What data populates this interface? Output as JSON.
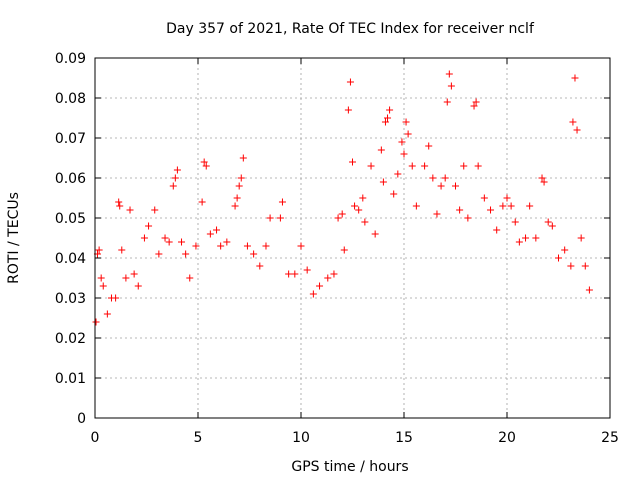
{
  "chart_data": {
    "type": "scatter",
    "title": "Day 357 of 2021, Rate Of TEC Index for receiver nclf",
    "xlabel": "GPS time / hours",
    "ylabel": "ROTI / TECUs",
    "xlim": [
      0,
      25
    ],
    "ylim": [
      0,
      0.09
    ],
    "grid": true,
    "marker": "+",
    "colors": {
      "marker": "#ff0000",
      "grid": "#a0a0a0",
      "axis": "#000000"
    },
    "x_ticks": [
      "0",
      "5",
      "10",
      "15",
      "20",
      "25"
    ],
    "y_ticks": [
      "0",
      "0.01",
      "0.02",
      "0.03",
      "0.04",
      "0.05",
      "0.06",
      "0.07",
      "0.08",
      "0.09"
    ],
    "series": [
      {
        "marker": "+",
        "points": [
          [
            0.05,
            0.024
          ],
          [
            0.12,
            0.041
          ],
          [
            0.2,
            0.042
          ],
          [
            0.3,
            0.035
          ],
          [
            0.4,
            0.033
          ],
          [
            0.6,
            0.026
          ],
          [
            0.8,
            0.03
          ],
          [
            1.0,
            0.03
          ],
          [
            1.15,
            0.054
          ],
          [
            1.2,
            0.053
          ],
          [
            1.3,
            0.042
          ],
          [
            1.5,
            0.035
          ],
          [
            1.7,
            0.052
          ],
          [
            1.9,
            0.036
          ],
          [
            2.1,
            0.033
          ],
          [
            2.4,
            0.045
          ],
          [
            2.6,
            0.048
          ],
          [
            2.9,
            0.052
          ],
          [
            3.1,
            0.041
          ],
          [
            3.4,
            0.045
          ],
          [
            3.6,
            0.044
          ],
          [
            3.8,
            0.058
          ],
          [
            3.9,
            0.06
          ],
          [
            4.0,
            0.062
          ],
          [
            4.2,
            0.044
          ],
          [
            4.4,
            0.041
          ],
          [
            4.6,
            0.035
          ],
          [
            4.9,
            0.043
          ],
          [
            5.2,
            0.054
          ],
          [
            5.3,
            0.064
          ],
          [
            5.4,
            0.063
          ],
          [
            5.6,
            0.046
          ],
          [
            5.9,
            0.047
          ],
          [
            6.1,
            0.043
          ],
          [
            6.4,
            0.044
          ],
          [
            6.8,
            0.053
          ],
          [
            6.9,
            0.055
          ],
          [
            7.0,
            0.058
          ],
          [
            7.1,
            0.06
          ],
          [
            7.2,
            0.065
          ],
          [
            7.4,
            0.043
          ],
          [
            7.7,
            0.041
          ],
          [
            8.0,
            0.038
          ],
          [
            8.3,
            0.043
          ],
          [
            8.5,
            0.05
          ],
          [
            9.0,
            0.05
          ],
          [
            9.1,
            0.054
          ],
          [
            9.4,
            0.036
          ],
          [
            9.7,
            0.036
          ],
          [
            10.0,
            0.043
          ],
          [
            10.3,
            0.037
          ],
          [
            10.6,
            0.031
          ],
          [
            10.9,
            0.033
          ],
          [
            11.3,
            0.035
          ],
          [
            11.6,
            0.036
          ],
          [
            11.8,
            0.05
          ],
          [
            12.0,
            0.051
          ],
          [
            12.1,
            0.042
          ],
          [
            12.3,
            0.077
          ],
          [
            12.4,
            0.084
          ],
          [
            12.5,
            0.064
          ],
          [
            12.6,
            0.053
          ],
          [
            12.8,
            0.052
          ],
          [
            13.0,
            0.055
          ],
          [
            13.1,
            0.049
          ],
          [
            13.4,
            0.063
          ],
          [
            13.6,
            0.046
          ],
          [
            13.9,
            0.067
          ],
          [
            14.0,
            0.059
          ],
          [
            14.1,
            0.074
          ],
          [
            14.2,
            0.075
          ],
          [
            14.3,
            0.077
          ],
          [
            14.5,
            0.056
          ],
          [
            14.7,
            0.061
          ],
          [
            14.9,
            0.069
          ],
          [
            15.0,
            0.066
          ],
          [
            15.1,
            0.074
          ],
          [
            15.2,
            0.071
          ],
          [
            15.4,
            0.063
          ],
          [
            15.6,
            0.053
          ],
          [
            16.0,
            0.063
          ],
          [
            16.2,
            0.068
          ],
          [
            16.4,
            0.06
          ],
          [
            16.6,
            0.051
          ],
          [
            16.8,
            0.058
          ],
          [
            17.0,
            0.06
          ],
          [
            17.1,
            0.079
          ],
          [
            17.2,
            0.086
          ],
          [
            17.3,
            0.083
          ],
          [
            17.5,
            0.058
          ],
          [
            17.7,
            0.052
          ],
          [
            17.9,
            0.063
          ],
          [
            18.1,
            0.05
          ],
          [
            18.4,
            0.078
          ],
          [
            18.5,
            0.079
          ],
          [
            18.6,
            0.063
          ],
          [
            18.9,
            0.055
          ],
          [
            19.2,
            0.052
          ],
          [
            19.5,
            0.047
          ],
          [
            19.8,
            0.053
          ],
          [
            20.0,
            0.055
          ],
          [
            20.2,
            0.053
          ],
          [
            20.4,
            0.049
          ],
          [
            20.6,
            0.044
          ],
          [
            20.9,
            0.045
          ],
          [
            21.1,
            0.053
          ],
          [
            21.4,
            0.045
          ],
          [
            21.7,
            0.06
          ],
          [
            21.8,
            0.059
          ],
          [
            22.0,
            0.049
          ],
          [
            22.2,
            0.048
          ],
          [
            22.5,
            0.04
          ],
          [
            22.8,
            0.042
          ],
          [
            23.1,
            0.038
          ],
          [
            23.2,
            0.074
          ],
          [
            23.3,
            0.085
          ],
          [
            23.4,
            0.072
          ],
          [
            23.6,
            0.045
          ],
          [
            23.8,
            0.038
          ],
          [
            24.0,
            0.032
          ]
        ]
      }
    ]
  }
}
